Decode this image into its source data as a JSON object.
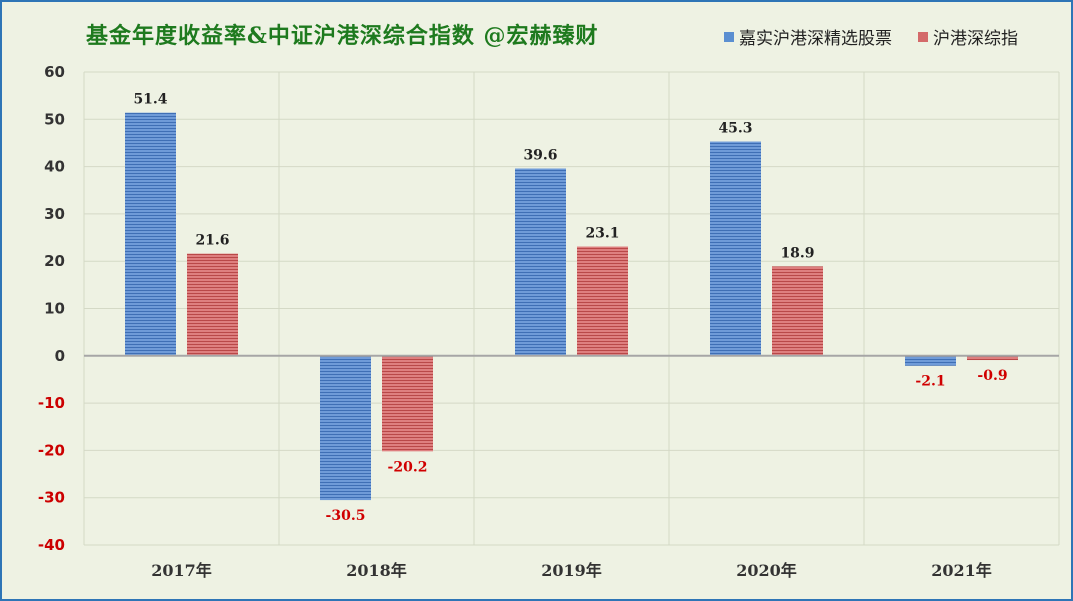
{
  "title": "基金年度收益率&中证沪港深综合指数 @宏赫臻财",
  "colors": {
    "accent_title": "#1e7a1e",
    "series1": "#5b8fd1",
    "series2": "#d46a6a",
    "negative_label": "#d00000",
    "border": "#2e75b6"
  },
  "chart_data": {
    "type": "bar",
    "categories": [
      "2017年",
      "2018年",
      "2019年",
      "2020年",
      "2021年"
    ],
    "series": [
      {
        "name": "嘉实沪港深精选股票",
        "values": [
          51.4,
          -30.5,
          39.6,
          45.3,
          -2.1
        ],
        "labels": [
          "51.4",
          "-30.5",
          "39.6",
          "45.3",
          "-2.1"
        ]
      },
      {
        "name": "沪港深综指",
        "values": [
          21.6,
          -20.2,
          23.1,
          18.9,
          -0.9
        ],
        "labels": [
          "21.6",
          "-20.2",
          "23.1",
          "18.9",
          "-0.9"
        ]
      }
    ],
    "ylim": [
      -40,
      60
    ],
    "yticks": [
      60,
      50,
      40,
      30,
      20,
      10,
      0,
      -10,
      -20,
      -30,
      -40
    ],
    "grid": true,
    "legend_position": "top-right"
  }
}
